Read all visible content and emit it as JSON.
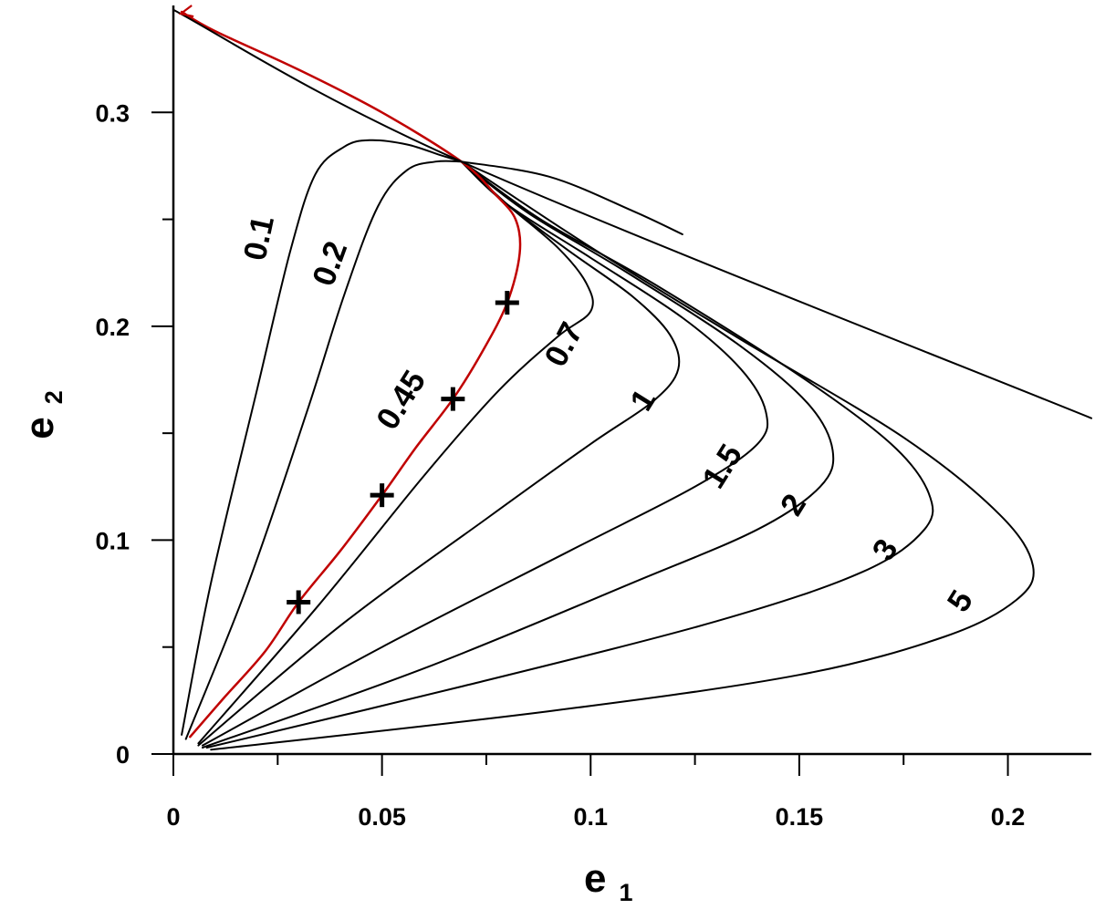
{
  "chart_data": {
    "type": "line",
    "title": "",
    "xlabel": {
      "main": "e",
      "sub": "1"
    },
    "ylabel": {
      "main": "e",
      "sub": "2"
    },
    "xlim": [
      0,
      0.22
    ],
    "ylim": [
      0,
      0.35
    ],
    "x_ticks": [
      {
        "value": 0,
        "label": "0"
      },
      {
        "value": 0.05,
        "label": "0.05"
      },
      {
        "value": 0.1,
        "label": "0.1"
      },
      {
        "value": 0.15,
        "label": "0.15"
      },
      {
        "value": 0.2,
        "label": "0.2"
      }
    ],
    "x_minor_ticks": [
      0.025,
      0.075,
      0.125,
      0.175
    ],
    "y_ticks": [
      {
        "value": 0,
        "label": "0"
      },
      {
        "value": 0.1,
        "label": "0.1"
      },
      {
        "value": 0.2,
        "label": "0.2"
      },
      {
        "value": 0.3,
        "label": "0.3"
      }
    ],
    "y_minor_ticks": [
      0.05,
      0.15,
      0.25
    ],
    "grid": false,
    "legend": "none",
    "curves": [
      {
        "label": "0.1",
        "color": "#000000",
        "label_at": [
          0.021,
          0.241
        ],
        "label_angle": -78,
        "points": [
          [
            0.002,
            0.009
          ],
          [
            0.009,
            0.08
          ],
          [
            0.02,
            0.17
          ],
          [
            0.028,
            0.235
          ],
          [
            0.034,
            0.271
          ],
          [
            0.041,
            0.284
          ],
          [
            0.047,
            0.287
          ],
          [
            0.056,
            0.285
          ],
          [
            0.064,
            0.28
          ],
          [
            0.069,
            0.277
          ]
        ]
      },
      {
        "label": "0.2",
        "color": "#000000",
        "label_at": [
          0.038,
          0.229
        ],
        "label_angle": -70,
        "points": [
          [
            0.003,
            0.007
          ],
          [
            0.018,
            0.08
          ],
          [
            0.032,
            0.16
          ],
          [
            0.041,
            0.215
          ],
          [
            0.049,
            0.256
          ],
          [
            0.056,
            0.273
          ],
          [
            0.063,
            0.277
          ],
          [
            0.069,
            0.277
          ]
        ]
      },
      {
        "label": "0.7",
        "color": "#000000",
        "label_at": [
          0.094,
          0.191
        ],
        "label_angle": -62,
        "points": [
          [
            0.006,
            0.005
          ],
          [
            0.035,
            0.07
          ],
          [
            0.06,
            0.13
          ],
          [
            0.078,
            0.17
          ],
          [
            0.092,
            0.195
          ],
          [
            0.1,
            0.207
          ],
          [
            0.099,
            0.22
          ],
          [
            0.092,
            0.237
          ],
          [
            0.08,
            0.257
          ],
          [
            0.069,
            0.277
          ]
        ]
      },
      {
        "label": "1",
        "color": "#000000",
        "label_at": [
          0.113,
          0.165
        ],
        "label_angle": -58,
        "points": [
          [
            0.006,
            0.004
          ],
          [
            0.04,
            0.06
          ],
          [
            0.075,
            0.11
          ],
          [
            0.1,
            0.145
          ],
          [
            0.115,
            0.165
          ],
          [
            0.121,
            0.18
          ],
          [
            0.119,
            0.196
          ],
          [
            0.11,
            0.214
          ],
          [
            0.095,
            0.235
          ],
          [
            0.08,
            0.257
          ],
          [
            0.069,
            0.277
          ]
        ]
      },
      {
        "label": "1.5",
        "color": "#000000",
        "label_at": [
          0.132,
          0.134
        ],
        "label_angle": -58,
        "points": [
          [
            0.007,
            0.004
          ],
          [
            0.05,
            0.05
          ],
          [
            0.095,
            0.095
          ],
          [
            0.125,
            0.125
          ],
          [
            0.14,
            0.145
          ],
          [
            0.142,
            0.16
          ],
          [
            0.136,
            0.18
          ],
          [
            0.122,
            0.204
          ],
          [
            0.1,
            0.232
          ],
          [
            0.08,
            0.257
          ],
          [
            0.069,
            0.277
          ]
        ]
      },
      {
        "label": "2",
        "color": "#000000",
        "label_at": [
          0.149,
          0.116
        ],
        "label_angle": -58,
        "points": [
          [
            0.007,
            0.003
          ],
          [
            0.06,
            0.04
          ],
          [
            0.11,
            0.08
          ],
          [
            0.14,
            0.105
          ],
          [
            0.155,
            0.125
          ],
          [
            0.158,
            0.142
          ],
          [
            0.152,
            0.164
          ],
          [
            0.135,
            0.192
          ],
          [
            0.108,
            0.226
          ],
          [
            0.085,
            0.253
          ],
          [
            0.069,
            0.277
          ]
        ]
      },
      {
        "label": "3",
        "color": "#000000",
        "label_at": [
          0.171,
          0.095
        ],
        "label_angle": -58,
        "points": [
          [
            0.008,
            0.003
          ],
          [
            0.07,
            0.032
          ],
          [
            0.13,
            0.062
          ],
          [
            0.165,
            0.085
          ],
          [
            0.18,
            0.105
          ],
          [
            0.181,
            0.122
          ],
          [
            0.172,
            0.145
          ],
          [
            0.15,
            0.177
          ],
          [
            0.115,
            0.22
          ],
          [
            0.088,
            0.25
          ],
          [
            0.069,
            0.277
          ]
        ]
      },
      {
        "label": "5",
        "color": "#000000",
        "label_at": [
          0.189,
          0.071
        ],
        "label_angle": -58,
        "points": [
          [
            0.009,
            0.002
          ],
          [
            0.09,
            0.02
          ],
          [
            0.15,
            0.037
          ],
          [
            0.185,
            0.055
          ],
          [
            0.202,
            0.072
          ],
          [
            0.206,
            0.088
          ],
          [
            0.198,
            0.112
          ],
          [
            0.175,
            0.148
          ],
          [
            0.135,
            0.195
          ],
          [
            0.1,
            0.237
          ],
          [
            0.069,
            0.277
          ]
        ]
      },
      {
        "label": "0.45",
        "color": "#c00000",
        "label_at": [
          0.055,
          0.165
        ],
        "label_angle": -58,
        "points": [
          [
            0.004,
            0.008
          ],
          [
            0.012,
            0.026
          ],
          [
            0.022,
            0.048
          ],
          [
            0.03,
            0.071
          ],
          [
            0.04,
            0.095
          ],
          [
            0.05,
            0.121
          ],
          [
            0.058,
            0.143
          ],
          [
            0.067,
            0.166
          ],
          [
            0.074,
            0.188
          ],
          [
            0.08,
            0.211
          ],
          [
            0.083,
            0.234
          ],
          [
            0.082,
            0.25
          ],
          [
            0.077,
            0.262
          ],
          [
            0.069,
            0.277
          ],
          [
            0.05,
            0.3
          ],
          [
            0.03,
            0.32
          ],
          [
            0.01,
            0.338
          ],
          [
            0.002,
            0.347
          ]
        ]
      },
      {
        "label": "",
        "color": "#000000",
        "label_at": null,
        "label_angle": 0,
        "points": [
          [
            0.0,
            0.348
          ],
          [
            0.069,
            0.277
          ],
          [
            0.22,
            0.157
          ]
        ]
      },
      {
        "label": "",
        "color": "#000000",
        "label_at": null,
        "label_angle": 0,
        "points": [
          [
            0.069,
            0.277
          ],
          [
            0.09,
            0.27
          ],
          [
            0.11,
            0.254
          ],
          [
            0.122,
            0.243
          ]
        ]
      }
    ],
    "markers": {
      "symbol": "+",
      "color": "#000000",
      "points": [
        [
          0.03,
          0.071
        ],
        [
          0.05,
          0.121
        ],
        [
          0.067,
          0.166
        ],
        [
          0.08,
          0.211
        ]
      ]
    }
  }
}
